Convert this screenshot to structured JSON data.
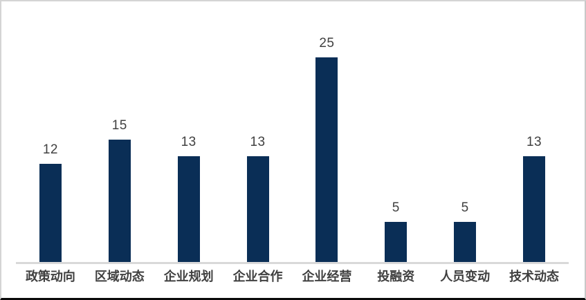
{
  "chart_data": {
    "type": "bar",
    "title": "",
    "xlabel": "",
    "ylabel": "",
    "categories": [
      "政策动向",
      "区域动态",
      "企业规划",
      "企业合作",
      "企业经营",
      "投融资",
      "人员变动",
      "技术动态"
    ],
    "values": [
      12,
      15,
      13,
      13,
      25,
      5,
      5,
      13
    ],
    "data_labels": [
      12,
      15,
      13,
      13,
      25,
      5,
      5,
      13
    ],
    "ylim": [
      0,
      25
    ],
    "grid": false,
    "legend": "none",
    "colors": {
      "bar": "#0a2e56",
      "axis_line": "#d9d9d9",
      "value_label": "#404040",
      "category_label": "#404040",
      "background": "#ffffff",
      "frame_border": "#d4d4d4",
      "frame_bottom_border": "#0a0a0a"
    }
  }
}
